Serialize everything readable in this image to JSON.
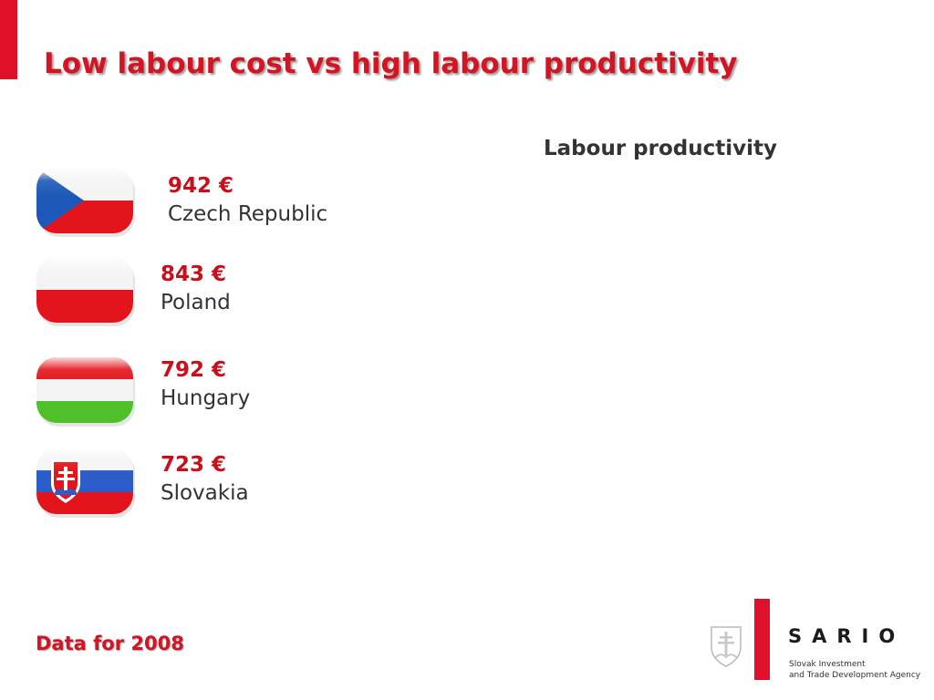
{
  "slide": {
    "title": "Low labour cost vs high labour productivity",
    "section_heading": "Labour productivity",
    "items": [
      {
        "value": "942 €",
        "country": "Czech Republic",
        "flag": "czech-flag-icon"
      },
      {
        "value": "843 €",
        "country": "Poland",
        "flag": "poland-flag-icon"
      },
      {
        "value": "792 €",
        "country": "Hungary",
        "flag": "hungary-flag-icon"
      },
      {
        "value": "723 €",
        "country": "Slovakia",
        "flag": "slovakia-flag-icon"
      }
    ],
    "footnote": "Data for 2008"
  },
  "logo": {
    "name": "SARIO",
    "tagline_line1": "Slovak Investment",
    "tagline_line2": "and Trade Development Agency",
    "crest": "slovak-crest-icon"
  },
  "colors": {
    "accent": "#e0102a",
    "title": "#d41422",
    "value": "#c8101c",
    "text": "#333333"
  }
}
